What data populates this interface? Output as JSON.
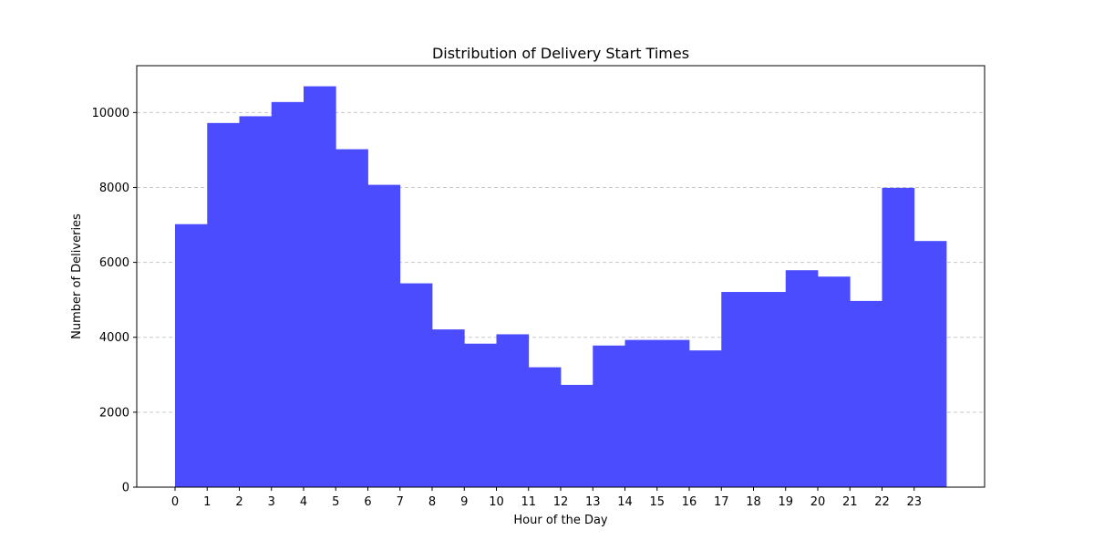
{
  "chart_data": {
    "type": "bar",
    "title": "Distribution of Delivery Start Times",
    "xlabel": "Hour of the Day",
    "ylabel": "Number of Deliveries",
    "categories": [
      "0",
      "1",
      "2",
      "3",
      "4",
      "5",
      "6",
      "7",
      "8",
      "9",
      "10",
      "11",
      "12",
      "13",
      "14",
      "15",
      "16",
      "17",
      "18",
      "19",
      "20",
      "21",
      "22",
      "23"
    ],
    "values": [
      7020,
      9720,
      9900,
      10280,
      10700,
      9020,
      8070,
      5440,
      4210,
      3830,
      4080,
      3200,
      2730,
      3780,
      3930,
      3930,
      3650,
      5210,
      5210,
      5790,
      5620,
      4970,
      7990,
      6570
    ],
    "ylim": [
      0,
      11250
    ],
    "yticks": [
      0,
      2000,
      4000,
      6000,
      8000,
      10000
    ],
    "grid": "y-dashed",
    "bar_color": "#4c4cff",
    "grid_color": "#c8c8c8"
  }
}
